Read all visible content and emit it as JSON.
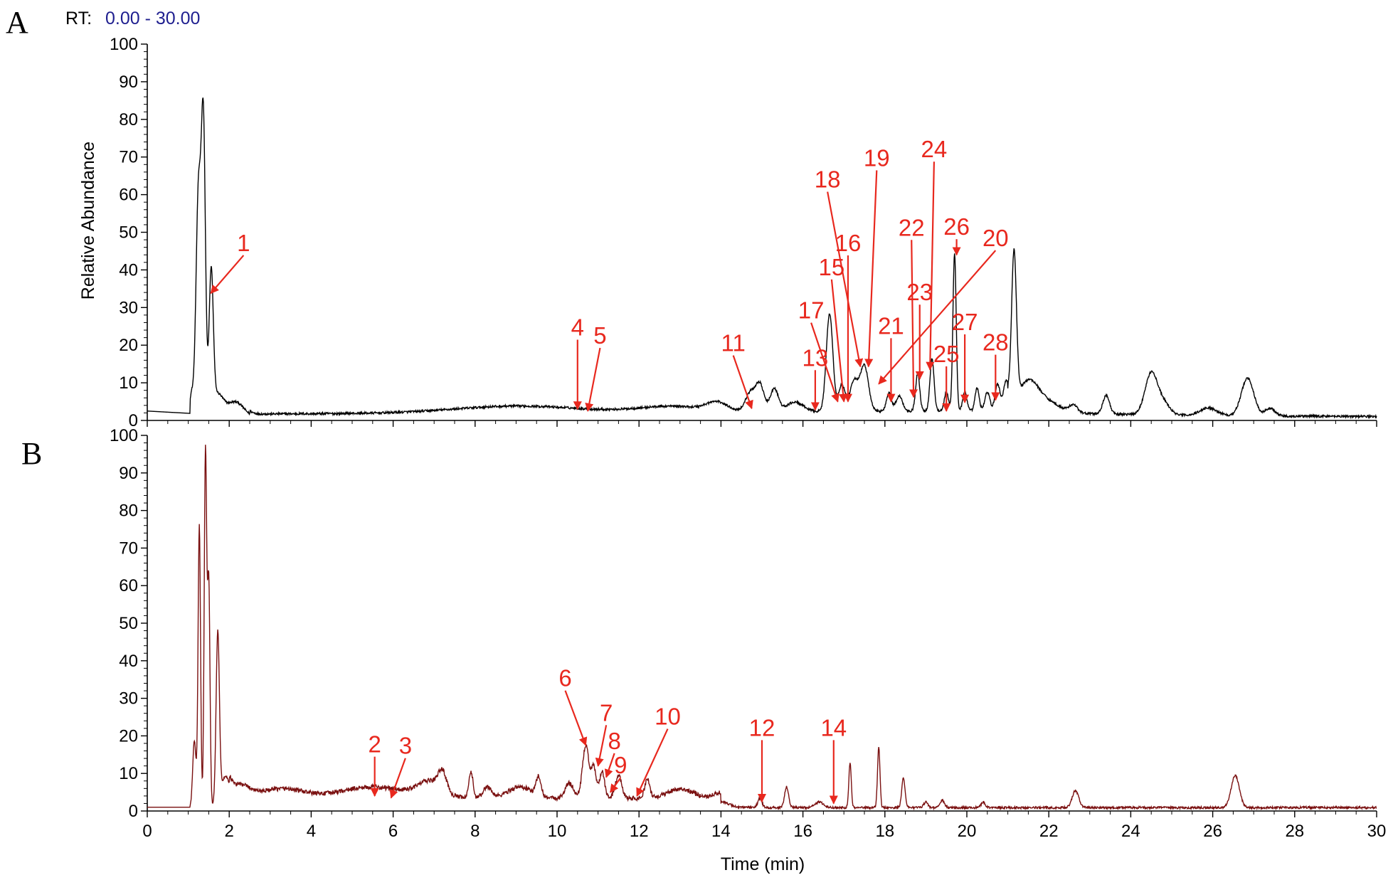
{
  "header": {
    "rt_label": "RT:",
    "rt_range": "0.00 - 30.00"
  },
  "colors": {
    "trace_a": "#000000",
    "trace_b": "#7a1010",
    "annotation": "#e8281e",
    "rt_range": "#1f1f8f"
  },
  "chart_data": [
    {
      "type": "line",
      "panel": "A",
      "xlabel": "",
      "ylabel": "Relative Abundance",
      "xlim": [
        0,
        30
      ],
      "ylim": [
        0,
        100
      ],
      "y_ticks": [
        0,
        10,
        20,
        30,
        40,
        50,
        60,
        70,
        80,
        90,
        100
      ],
      "x_ticks": [
        0,
        2,
        4,
        6,
        8,
        10,
        12,
        14,
        16,
        18,
        20,
        22,
        24,
        26,
        28,
        30
      ],
      "baseline": 0.9,
      "peaks": [
        {
          "t": 1.08,
          "h": 6,
          "w": 0.05
        },
        {
          "t": 1.25,
          "h": 60,
          "w": 0.06
        },
        {
          "t": 1.37,
          "h": 75,
          "w": 0.05
        },
        {
          "t": 1.56,
          "h": 36,
          "w": 0.05
        },
        {
          "t": 1.7,
          "h": 6,
          "w": 0.15
        },
        {
          "t": 2.15,
          "h": 4,
          "w": 0.2
        },
        {
          "t": 9.0,
          "h": 1.8,
          "w": 1.5
        },
        {
          "t": 12.8,
          "h": 1.5,
          "w": 0.8
        },
        {
          "t": 13.9,
          "h": 2.2,
          "w": 0.25
        },
        {
          "t": 14.72,
          "h": 5,
          "w": 0.12
        },
        {
          "t": 14.95,
          "h": 7,
          "w": 0.1
        },
        {
          "t": 15.3,
          "h": 6,
          "w": 0.1
        },
        {
          "t": 15.8,
          "h": 2.5,
          "w": 0.2
        },
        {
          "t": 16.65,
          "h": 26,
          "w": 0.08
        },
        {
          "t": 16.95,
          "h": 7,
          "w": 0.08
        },
        {
          "t": 17.25,
          "h": 8,
          "w": 0.1
        },
        {
          "t": 17.5,
          "h": 12,
          "w": 0.1
        },
        {
          "t": 18.1,
          "h": 5,
          "w": 0.06
        },
        {
          "t": 18.35,
          "h": 4,
          "w": 0.08
        },
        {
          "t": 18.8,
          "h": 10,
          "w": 0.05
        },
        {
          "t": 19.15,
          "h": 14,
          "w": 0.05
        },
        {
          "t": 19.5,
          "h": 5,
          "w": 0.05
        },
        {
          "t": 19.7,
          "h": 42,
          "w": 0.04
        },
        {
          "t": 19.95,
          "h": 5,
          "w": 0.05
        },
        {
          "t": 20.25,
          "h": 6,
          "w": 0.05
        },
        {
          "t": 20.5,
          "h": 5,
          "w": 0.06
        },
        {
          "t": 20.75,
          "h": 7,
          "w": 0.06
        },
        {
          "t": 20.95,
          "h": 7,
          "w": 0.06
        },
        {
          "t": 21.15,
          "h": 40,
          "w": 0.06
        },
        {
          "t": 21.5,
          "h": 8,
          "w": 0.25
        },
        {
          "t": 22.0,
          "h": 2.5,
          "w": 0.3
        },
        {
          "t": 22.6,
          "h": 2.0,
          "w": 0.1
        },
        {
          "t": 23.4,
          "h": 5,
          "w": 0.08
        },
        {
          "t": 24.5,
          "h": 11,
          "w": 0.15
        },
        {
          "t": 24.8,
          "h": 3,
          "w": 0.15
        },
        {
          "t": 25.9,
          "h": 2,
          "w": 0.2
        },
        {
          "t": 26.85,
          "h": 10,
          "w": 0.15
        },
        {
          "t": 27.4,
          "h": 2,
          "w": 0.12
        }
      ],
      "annotations": [
        {
          "label": "1",
          "x": 2.35,
          "y": 45.0,
          "tx": 1.55,
          "ty": 33.8
        },
        {
          "label": "4",
          "x": 10.5,
          "y": 22.6,
          "tx": 10.5,
          "ty": 3.0
        },
        {
          "label": "5",
          "x": 11.05,
          "y": 20.4,
          "tx": 10.75,
          "ty": 2.5
        },
        {
          "label": "11",
          "x": 14.3,
          "y": 18.4,
          "tx": 14.75,
          "ty": 3.2
        },
        {
          "label": "13",
          "x": 16.3,
          "y": 14.5,
          "tx": 16.3,
          "ty": 2.8
        },
        {
          "label": "15",
          "x": 16.7,
          "y": 38.6,
          "tx": 17.0,
          "ty": 5.0
        },
        {
          "label": "16",
          "x": 17.1,
          "y": 45.0,
          "tx": 17.1,
          "ty": 5.0
        },
        {
          "label": "17",
          "x": 16.2,
          "y": 27.1,
          "tx": 16.85,
          "ty": 5.0
        },
        {
          "label": "18",
          "x": 16.6,
          "y": 61.9,
          "tx": 17.4,
          "ty": 14.3
        },
        {
          "label": "19",
          "x": 17.8,
          "y": 67.6,
          "tx": 17.6,
          "ty": 14.3
        },
        {
          "label": "20",
          "x": 20.7,
          "y": 46.3,
          "tx": 17.85,
          "ty": 9.7
        },
        {
          "label": "21",
          "x": 18.15,
          "y": 23.0,
          "tx": 18.15,
          "ty": 5.0
        },
        {
          "label": "22",
          "x": 18.65,
          "y": 49.1,
          "tx": 18.7,
          "ty": 6.2
        },
        {
          "label": "23",
          "x": 18.85,
          "y": 31.9,
          "tx": 18.85,
          "ty": 11.0
        },
        {
          "label": "24",
          "x": 19.2,
          "y": 69.9,
          "tx": 19.1,
          "ty": 13.5
        },
        {
          "label": "25",
          "x": 19.5,
          "y": 15.5,
          "tx": 19.5,
          "ty": 2.5
        },
        {
          "label": "26",
          "x": 19.75,
          "y": 49.3,
          "tx": 19.75,
          "ty": 44.0
        },
        {
          "label": "27",
          "x": 19.95,
          "y": 24.0,
          "tx": 19.95,
          "ty": 4.8
        },
        {
          "label": "28",
          "x": 20.7,
          "y": 18.6,
          "tx": 20.7,
          "ty": 5.4
        }
      ]
    },
    {
      "type": "line",
      "panel": "B",
      "xlabel": "Time (min)",
      "ylabel": "",
      "xlim": [
        0,
        30
      ],
      "ylim": [
        0,
        100
      ],
      "y_ticks": [
        0,
        10,
        20,
        30,
        40,
        50,
        60,
        70,
        80,
        90,
        100
      ],
      "x_ticks": [
        0,
        2,
        4,
        6,
        8,
        10,
        12,
        14,
        16,
        18,
        20,
        22,
        24,
        26,
        28,
        30
      ],
      "baseline": 0.9,
      "peaks": [
        {
          "t": 1.15,
          "h": 18,
          "w": 0.04
        },
        {
          "t": 1.27,
          "h": 75,
          "w": 0.03
        },
        {
          "t": 1.42,
          "h": 95,
          "w": 0.03
        },
        {
          "t": 1.5,
          "h": 60,
          "w": 0.03
        },
        {
          "t": 1.72,
          "h": 45,
          "w": 0.04
        },
        {
          "t": 1.9,
          "h": 6,
          "w": 0.1
        },
        {
          "t": 2.2,
          "h": 3.5,
          "w": 0.3
        },
        {
          "t": 3.3,
          "h": 2.5,
          "w": 0.5
        },
        {
          "t": 5.5,
          "h": 3,
          "w": 0.8
        },
        {
          "t": 6.9,
          "h": 4,
          "w": 0.3
        },
        {
          "t": 7.2,
          "h": 5,
          "w": 0.1
        },
        {
          "t": 7.9,
          "h": 7,
          "w": 0.05
        },
        {
          "t": 8.3,
          "h": 3,
          "w": 0.1
        },
        {
          "t": 9.1,
          "h": 3,
          "w": 0.3
        },
        {
          "t": 9.55,
          "h": 5,
          "w": 0.06
        },
        {
          "t": 10.3,
          "h": 4,
          "w": 0.1
        },
        {
          "t": 10.7,
          "h": 14,
          "w": 0.08
        },
        {
          "t": 10.9,
          "h": 8,
          "w": 0.06
        },
        {
          "t": 11.1,
          "h": 7,
          "w": 0.06
        },
        {
          "t": 11.5,
          "h": 6,
          "w": 0.08
        },
        {
          "t": 12.2,
          "h": 5,
          "w": 0.06
        },
        {
          "t": 13.0,
          "h": 2.5,
          "w": 0.3
        },
        {
          "t": 14.0,
          "h": 1.5,
          "w": 0.2
        },
        {
          "t": 14.95,
          "h": 2.5,
          "w": 0.05
        },
        {
          "t": 15.6,
          "h": 5.5,
          "w": 0.05
        },
        {
          "t": 16.4,
          "h": 1.5,
          "w": 0.1
        },
        {
          "t": 17.15,
          "h": 12,
          "w": 0.03
        },
        {
          "t": 17.85,
          "h": 16,
          "w": 0.03
        },
        {
          "t": 18.45,
          "h": 8,
          "w": 0.04
        },
        {
          "t": 19.0,
          "h": 1.5,
          "w": 0.05
        },
        {
          "t": 19.4,
          "h": 2,
          "w": 0.05
        },
        {
          "t": 20.4,
          "h": 1.5,
          "w": 0.05
        },
        {
          "t": 22.65,
          "h": 4.5,
          "w": 0.08
        },
        {
          "t": 26.55,
          "h": 8.5,
          "w": 0.1
        }
      ],
      "annotations": [
        {
          "label": "2",
          "x": 5.55,
          "y": 15.6,
          "tx": 5.55,
          "ty": 4.0
        },
        {
          "label": "3",
          "x": 6.3,
          "y": 15.2,
          "tx": 5.95,
          "ty": 3.5
        },
        {
          "label": "6",
          "x": 10.2,
          "y": 33.2,
          "tx": 10.7,
          "ty": 17.5
        },
        {
          "label": "7",
          "x": 11.2,
          "y": 24.0,
          "tx": 11.0,
          "ty": 12.0
        },
        {
          "label": "8",
          "x": 11.4,
          "y": 16.5,
          "tx": 11.2,
          "ty": 9.0
        },
        {
          "label": "9",
          "x": 11.55,
          "y": 10.0,
          "tx": 11.3,
          "ty": 5.0
        },
        {
          "label": "10",
          "x": 12.7,
          "y": 23.0,
          "tx": 11.95,
          "ty": 4.0
        },
        {
          "label": "12",
          "x": 15.0,
          "y": 20.0,
          "tx": 15.0,
          "ty": 2.5
        },
        {
          "label": "14",
          "x": 16.75,
          "y": 20.0,
          "tx": 16.75,
          "ty": 2.0
        }
      ]
    }
  ]
}
